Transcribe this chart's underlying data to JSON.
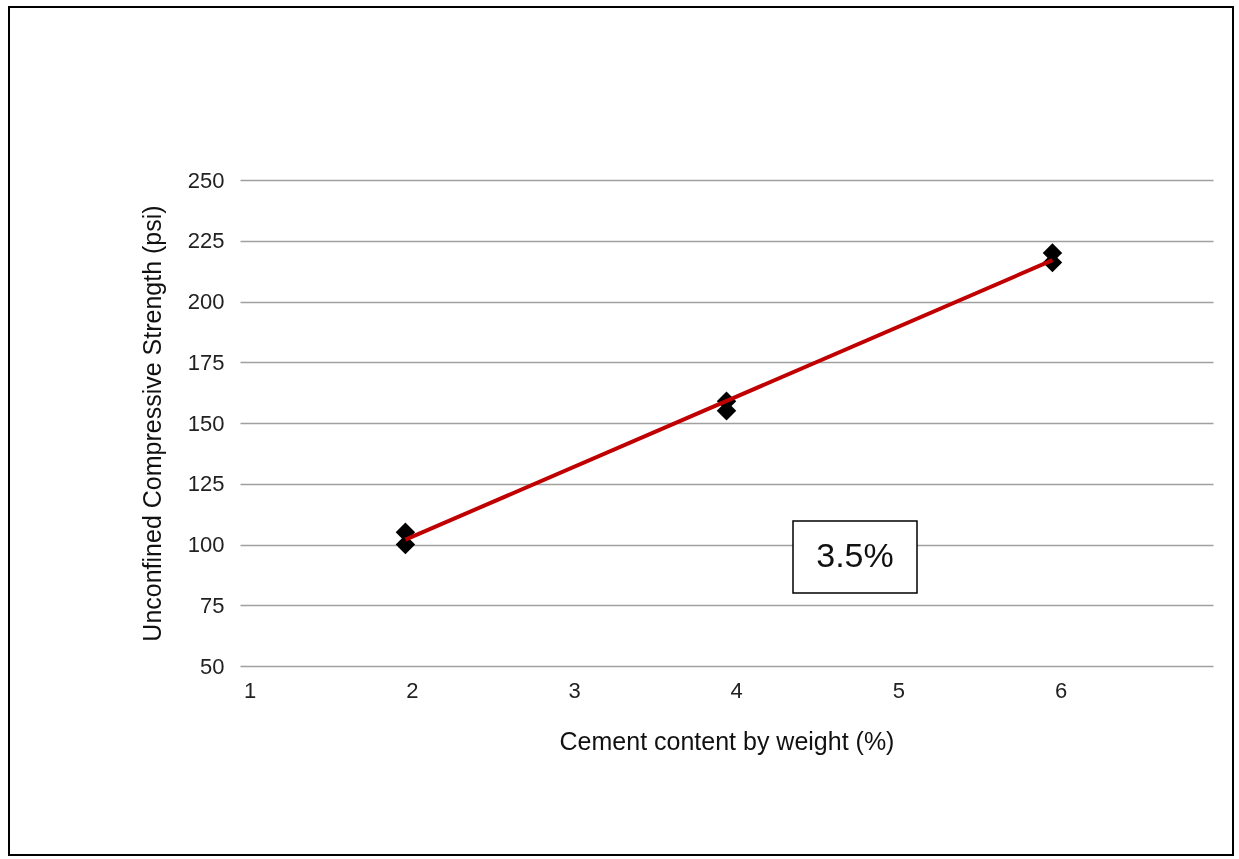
{
  "chart_data": {
    "type": "scatter",
    "xlabel": "Cement content by weight (%)",
    "ylabel": "Unconfined Compressive Strength (psi)",
    "xlim": [
      0.94,
      6.94
    ],
    "xticks": [
      1,
      2,
      3,
      4,
      5,
      6
    ],
    "ylim": [
      50,
      250
    ],
    "yticks": [
      50,
      75,
      100,
      125,
      150,
      175,
      200,
      225,
      250
    ],
    "grid": "y",
    "series": [
      {
        "color": "#000000",
        "marker": "diamond",
        "x": [
          1.96,
          1.96,
          3.94,
          3.94,
          5.95,
          5.95
        ],
        "values": [
          105,
          100,
          159,
          155,
          220,
          216
        ]
      },
      {
        "type": "line",
        "color": "#c00000",
        "x": [
          1.96,
          5.95
        ],
        "values": [
          102,
          217
        ]
      }
    ],
    "annotations": [
      "3.5%"
    ]
  }
}
